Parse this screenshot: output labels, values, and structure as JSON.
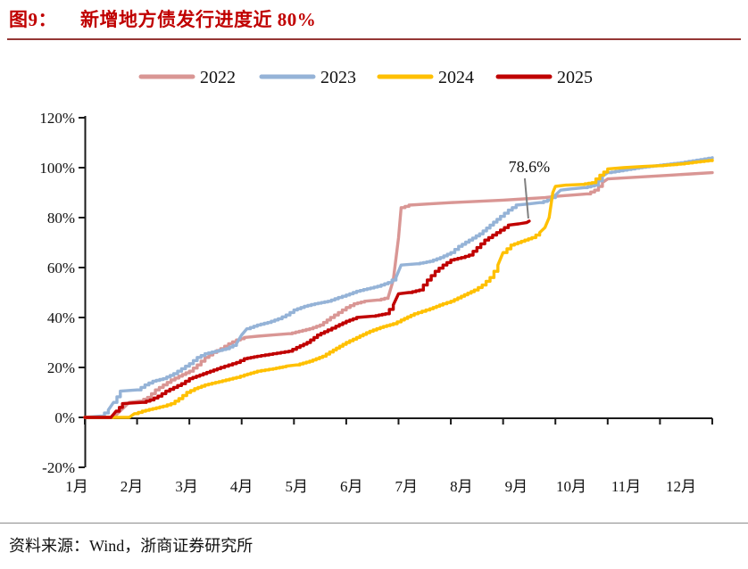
{
  "header": {
    "figure_label": "图9：",
    "title": "新增地方债发行进度近 80%"
  },
  "footer": {
    "source": "资料来源：Wind，浙商证券研究所"
  },
  "legend": [
    {
      "label": "2022",
      "color": "#D99694"
    },
    {
      "label": "2023",
      "color": "#95B3D7"
    },
    {
      "label": "2024",
      "color": "#FFC000"
    },
    {
      "label": "2025",
      "color": "#C00000"
    }
  ],
  "chart_data": {
    "type": "line",
    "title": "新增地方债发行进度近 80%",
    "xlabel": "",
    "ylabel": "",
    "ylim": [
      -20,
      120
    ],
    "grid": false,
    "legend_position": "top",
    "y_tick_labels": [
      "-20%",
      "0%",
      "20%",
      "40%",
      "60%",
      "80%",
      "100%",
      "120%"
    ],
    "x_tick_labels": [
      "1月",
      "2月",
      "3月",
      "4月",
      "5月",
      "6月",
      "7月",
      "8月",
      "9月",
      "10月",
      "11月",
      "12月"
    ],
    "x_unit": "month (0 = Jan 1, 12 = Dec 31), y in percent of annual quota issued",
    "annotation": {
      "text": "78.6%",
      "target_month": 8.5,
      "target_value": 78.6,
      "series": "2025"
    },
    "series": [
      {
        "name": "2022",
        "color": "#D99694",
        "end_value": 98,
        "points": [
          [
            0,
            0
          ],
          [
            0.55,
            0
          ],
          [
            0.65,
            2
          ],
          [
            0.75,
            4
          ],
          [
            0.85,
            6
          ],
          [
            1.05,
            6.5
          ],
          [
            1.2,
            8
          ],
          [
            1.35,
            11
          ],
          [
            1.5,
            13
          ],
          [
            1.65,
            15
          ],
          [
            1.8,
            16.5
          ],
          [
            2.0,
            18.5
          ],
          [
            2.15,
            21
          ],
          [
            2.3,
            24
          ],
          [
            2.45,
            26
          ],
          [
            2.6,
            27.5
          ],
          [
            2.75,
            29.5
          ],
          [
            2.9,
            31
          ],
          [
            3.05,
            32
          ],
          [
            3.3,
            32.5
          ],
          [
            3.6,
            33
          ],
          [
            3.9,
            33.5
          ],
          [
            4.1,
            34.5
          ],
          [
            4.3,
            35.5
          ],
          [
            4.5,
            37
          ],
          [
            4.7,
            40
          ],
          [
            4.85,
            42
          ],
          [
            5.0,
            44
          ],
          [
            5.15,
            45.5
          ],
          [
            5.35,
            46.5
          ],
          [
            5.6,
            47
          ],
          [
            5.8,
            48
          ],
          [
            5.9,
            55
          ],
          [
            6.0,
            72
          ],
          [
            6.05,
            84
          ],
          [
            6.2,
            85
          ],
          [
            6.6,
            85.5
          ],
          [
            7.0,
            86
          ],
          [
            7.5,
            86.5
          ],
          [
            8.0,
            87
          ],
          [
            8.4,
            87.5
          ],
          [
            8.8,
            88
          ],
          [
            9.0,
            88.5
          ],
          [
            9.3,
            89
          ],
          [
            9.6,
            89.5
          ],
          [
            9.75,
            91
          ],
          [
            9.9,
            94
          ],
          [
            10.0,
            95.5
          ],
          [
            10.4,
            96
          ],
          [
            10.8,
            96.5
          ],
          [
            11.2,
            97
          ],
          [
            11.6,
            97.5
          ],
          [
            12.0,
            98
          ]
        ]
      },
      {
        "name": "2023",
        "color": "#95B3D7",
        "end_value": 104,
        "points": [
          [
            0,
            0
          ],
          [
            0.3,
            0.5
          ],
          [
            0.45,
            3
          ],
          [
            0.55,
            6
          ],
          [
            0.68,
            10.5
          ],
          [
            1.0,
            11
          ],
          [
            1.15,
            13
          ],
          [
            1.3,
            14.5
          ],
          [
            1.5,
            15.5
          ],
          [
            1.7,
            17.5
          ],
          [
            1.85,
            19.5
          ],
          [
            2.0,
            21.5
          ],
          [
            2.15,
            24
          ],
          [
            2.3,
            25.5
          ],
          [
            2.5,
            26.5
          ],
          [
            2.7,
            27.5
          ],
          [
            2.9,
            29.5
          ],
          [
            3.0,
            33
          ],
          [
            3.1,
            35.5
          ],
          [
            3.3,
            37
          ],
          [
            3.5,
            38
          ],
          [
            3.7,
            39.5
          ],
          [
            3.85,
            41
          ],
          [
            4.0,
            43
          ],
          [
            4.2,
            44.5
          ],
          [
            4.4,
            45.5
          ],
          [
            4.65,
            46.5
          ],
          [
            4.85,
            48
          ],
          [
            5.0,
            49
          ],
          [
            5.2,
            50.5
          ],
          [
            5.4,
            51.5
          ],
          [
            5.6,
            52.5
          ],
          [
            5.8,
            54
          ],
          [
            5.95,
            56
          ],
          [
            6.05,
            61
          ],
          [
            6.35,
            61.5
          ],
          [
            6.6,
            62.5
          ],
          [
            6.8,
            64
          ],
          [
            7.0,
            66
          ],
          [
            7.15,
            68.5
          ],
          [
            7.35,
            71
          ],
          [
            7.55,
            73.5
          ],
          [
            7.75,
            77
          ],
          [
            7.95,
            80.5
          ],
          [
            8.1,
            83
          ],
          [
            8.25,
            85
          ],
          [
            8.5,
            85.5
          ],
          [
            8.7,
            86
          ],
          [
            8.85,
            87
          ],
          [
            9.0,
            89
          ],
          [
            9.1,
            91
          ],
          [
            9.3,
            91.5
          ],
          [
            9.55,
            92
          ],
          [
            9.75,
            93
          ],
          [
            9.9,
            96.5
          ],
          [
            10.0,
            98
          ],
          [
            10.3,
            99
          ],
          [
            10.6,
            100
          ],
          [
            11.0,
            101
          ],
          [
            11.4,
            102
          ],
          [
            11.7,
            103
          ],
          [
            12.0,
            104
          ]
        ]
      },
      {
        "name": "2024",
        "color": "#FFC000",
        "end_value": 103,
        "points": [
          [
            0,
            0
          ],
          [
            0.85,
            0
          ],
          [
            0.95,
            1.5
          ],
          [
            1.1,
            2.5
          ],
          [
            1.3,
            3.5
          ],
          [
            1.5,
            4.5
          ],
          [
            1.65,
            5.5
          ],
          [
            1.8,
            7.5
          ],
          [
            1.95,
            10
          ],
          [
            2.1,
            11.5
          ],
          [
            2.3,
            13
          ],
          [
            2.5,
            14
          ],
          [
            2.7,
            15
          ],
          [
            2.9,
            16
          ],
          [
            3.05,
            17
          ],
          [
            3.3,
            18.5
          ],
          [
            3.6,
            19.5
          ],
          [
            3.85,
            20.5
          ],
          [
            4.05,
            21
          ],
          [
            4.3,
            22.5
          ],
          [
            4.55,
            24.5
          ],
          [
            4.75,
            27
          ],
          [
            5.0,
            30
          ],
          [
            5.2,
            32
          ],
          [
            5.45,
            34.5
          ],
          [
            5.65,
            36
          ],
          [
            5.9,
            37.5
          ],
          [
            6.05,
            39
          ],
          [
            6.3,
            41.5
          ],
          [
            6.6,
            43.5
          ],
          [
            6.85,
            45.5
          ],
          [
            7.0,
            46.5
          ],
          [
            7.2,
            48.5
          ],
          [
            7.45,
            51
          ],
          [
            7.6,
            53
          ],
          [
            7.75,
            56
          ],
          [
            7.9,
            61
          ],
          [
            8.0,
            66
          ],
          [
            8.15,
            69
          ],
          [
            8.35,
            70.5
          ],
          [
            8.55,
            72
          ],
          [
            8.7,
            74
          ],
          [
            8.8,
            76
          ],
          [
            8.88,
            80
          ],
          [
            8.95,
            90
          ],
          [
            9.0,
            92.5
          ],
          [
            9.2,
            93
          ],
          [
            9.5,
            93.3
          ],
          [
            9.7,
            94
          ],
          [
            9.85,
            97
          ],
          [
            10.0,
            99.5
          ],
          [
            10.3,
            100
          ],
          [
            10.7,
            100.5
          ],
          [
            11.0,
            100.8
          ],
          [
            11.4,
            101.5
          ],
          [
            11.7,
            102.3
          ],
          [
            12.0,
            103
          ]
        ]
      },
      {
        "name": "2025",
        "color": "#C00000",
        "end_value": 78.6,
        "points": [
          [
            0,
            0
          ],
          [
            0.5,
            0
          ],
          [
            0.6,
            2.5
          ],
          [
            0.72,
            5.5
          ],
          [
            1.1,
            6
          ],
          [
            1.25,
            7
          ],
          [
            1.4,
            8.5
          ],
          [
            1.55,
            10.5
          ],
          [
            1.7,
            12
          ],
          [
            1.85,
            13.5
          ],
          [
            2.0,
            15.5
          ],
          [
            2.2,
            17
          ],
          [
            2.4,
            18.5
          ],
          [
            2.6,
            20
          ],
          [
            2.75,
            21
          ],
          [
            2.9,
            22
          ],
          [
            3.05,
            23.5
          ],
          [
            3.3,
            24.5
          ],
          [
            3.6,
            25.5
          ],
          [
            3.9,
            26.5
          ],
          [
            4.05,
            28
          ],
          [
            4.25,
            30
          ],
          [
            4.45,
            33
          ],
          [
            4.65,
            35
          ],
          [
            4.8,
            36.5
          ],
          [
            5.0,
            38.5
          ],
          [
            5.2,
            40
          ],
          [
            5.5,
            40.5
          ],
          [
            5.75,
            41.5
          ],
          [
            5.9,
            45
          ],
          [
            6.0,
            49.5
          ],
          [
            6.2,
            50
          ],
          [
            6.4,
            51
          ],
          [
            6.55,
            55
          ],
          [
            6.7,
            58.5
          ],
          [
            6.85,
            61
          ],
          [
            7.0,
            63
          ],
          [
            7.2,
            64
          ],
          [
            7.35,
            65
          ],
          [
            7.5,
            68
          ],
          [
            7.65,
            71
          ],
          [
            7.8,
            73
          ],
          [
            7.95,
            75
          ],
          [
            8.1,
            77
          ],
          [
            8.3,
            77.5
          ],
          [
            8.45,
            78
          ],
          [
            8.5,
            78.6
          ]
        ]
      }
    ]
  },
  "colors": {
    "title": "#c00000",
    "title_rule": "#953735",
    "axis": "#1a1a1a",
    "annotation_leader": "#808080",
    "footer_rule": "#8c8c8c"
  }
}
